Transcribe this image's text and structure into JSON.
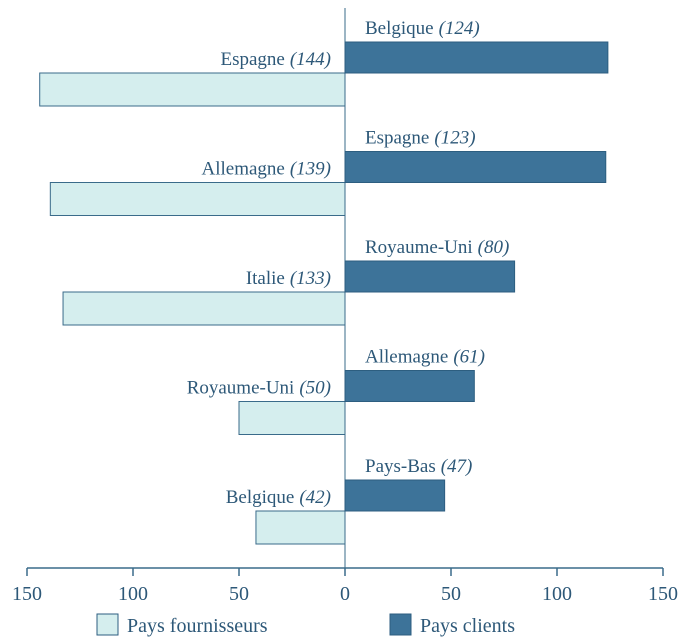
{
  "chart_data": {
    "type": "diverging_bar",
    "series": [
      {
        "name": "Pays fournisseurs",
        "color": "#d5eeee",
        "direction": "left",
        "categories": [
          "Espagne",
          "Allemagne",
          "Italie",
          "Royaume-Uni",
          "Belgique"
        ],
        "values": [
          144,
          139,
          133,
          50,
          42
        ],
        "value_labels": [
          "(144)",
          "(139)",
          "(133)",
          "(50)",
          "(42)"
        ]
      },
      {
        "name": "Pays clients",
        "color": "#3d7399",
        "direction": "right",
        "categories": [
          "Belgique",
          "Espagne",
          "Royaume-Uni",
          "Allemagne",
          "Pays-Bas"
        ],
        "values": [
          124,
          123,
          80,
          61,
          47
        ],
        "value_labels": [
          "(124)",
          "(123)",
          "(80)",
          "(61)",
          "(47)"
        ]
      }
    ],
    "xlim": [
      -150,
      150
    ],
    "xticks": [
      {
        "value": -150,
        "label": "150"
      },
      {
        "value": -100,
        "label": "100"
      },
      {
        "value": -50,
        "label": "50"
      },
      0,
      50,
      100,
      150
    ]
  }
}
